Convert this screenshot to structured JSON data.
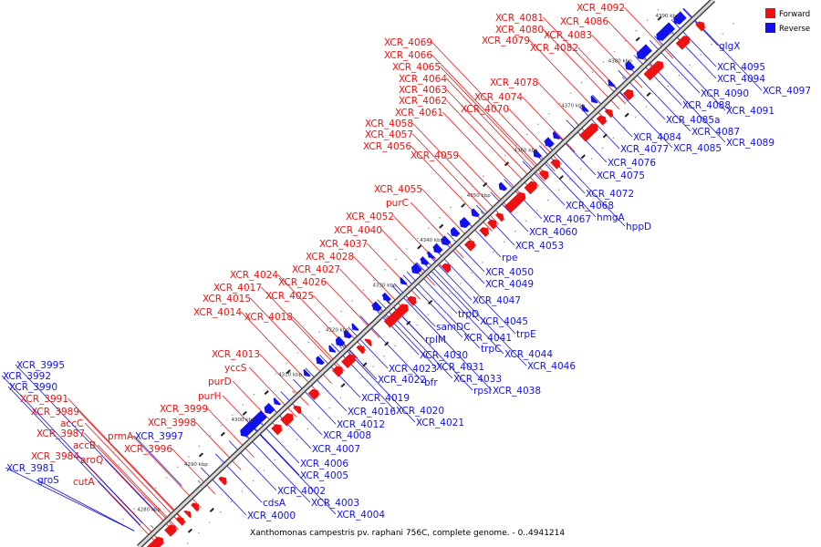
{
  "caption": "Xanthomonas campestris pv. raphani 756C, complete genome. - 0..4941214",
  "legend": [
    {
      "label": "Forward",
      "color": "#ee1111"
    },
    {
      "label": "Reverse",
      "color": "#1111ee"
    }
  ],
  "colors": {
    "forward": "#ee1111",
    "reverse": "#1111ee",
    "axis": "#808080"
  },
  "ticks": [
    "4280 kbp",
    "4290 kbp",
    "4300 kbp",
    "4310 kbp",
    "4320 kbp",
    "4330 kbp",
    "4340 kbp",
    "4350 kbp",
    "4360 kbp",
    "4370 kbp",
    "4380 kbp",
    "4390 kbp"
  ],
  "forward_labels": [
    "XCR_4092",
    "XCR_4081",
    "XCR_4086",
    "XCR_4080",
    "XCR_4083",
    "XCR_4079",
    "XCR_4082",
    "XCR_4069",
    "XCR_4066",
    "XCR_4065",
    "XCR_4064",
    "XCR_4063",
    "XCR_4078",
    "XCR_4062",
    "XCR_4074",
    "XCR_4061",
    "XCR_4070",
    "XCR_4058",
    "XCR_4057",
    "XCR_4056",
    "XCR_4059",
    "XCR_4055",
    "purC",
    "XCR_4052",
    "XCR_4040",
    "XCR_4037",
    "XCR_4028",
    "XCR_4027",
    "XCR_4024",
    "XCR_4026",
    "XCR_4017",
    "XCR_4025",
    "XCR_4015",
    "XCR_4014",
    "XCR_4018",
    "XCR_4013",
    "yccS",
    "purD",
    "purH",
    "XCR_3999",
    "XCR_3998",
    "XCR_3991",
    "XCR_3989",
    "accC",
    "XCR_3987",
    "accB",
    "prmA",
    "XCR_3996",
    "XCR_3984",
    "aroQ",
    "cutA"
  ],
  "reverse_labels": [
    "glgX",
    "XCR_4095",
    "XCR_4094",
    "XCR_4097",
    "XCR_4090",
    "XCR_4088",
    "XCR_4091",
    "XCR_4085a",
    "XCR_4087",
    "XCR_4084",
    "XCR_4089",
    "XCR_4077",
    "XCR_4085",
    "XCR_4076",
    "XCR_4075",
    "XCR_4072",
    "XCR_4068",
    "XCR_4067",
    "hmgA",
    "hppD",
    "XCR_4060",
    "XCR_4053",
    "rpe",
    "XCR_4050",
    "XCR_4049",
    "XCR_4047",
    "trpD",
    "XCR_4045",
    "samDC",
    "trpE",
    "XCR_4041",
    "rplM",
    "trpC",
    "XCR_4044",
    "XCR_4030",
    "XCR_4046",
    "XCR_4023",
    "XCR_4031",
    "XCR_4022",
    "bfr",
    "XCR_4033",
    "rpsI",
    "XCR_4038",
    "XCR_4019",
    "XCR_4016",
    "XCR_4020",
    "XCR_4012",
    "XCR_4021",
    "XCR_4008",
    "XCR_4007",
    "XCR_4006",
    "XCR_4005",
    "XCR_4002",
    "cdsA",
    "XCR_4003",
    "XCR_4000",
    "XCR_4004",
    "XCR_3997",
    "XCR_3995",
    "XCR_3992",
    "XCR_3990",
    "XCR_3981",
    "groS"
  ]
}
